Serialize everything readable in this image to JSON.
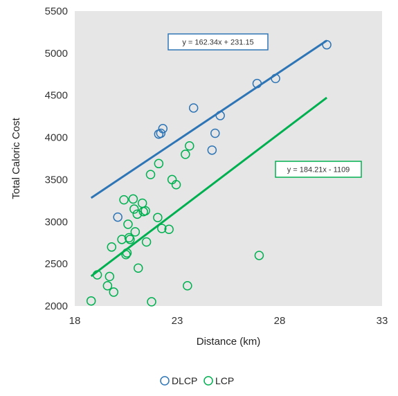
{
  "chart_data": {
    "type": "scatter",
    "xlabel": "Distance (km)",
    "ylabel": "Total Caloric Cost",
    "xlim": [
      18,
      33
    ],
    "ylim": [
      2000,
      5500
    ],
    "x_ticks": [
      18,
      23,
      28,
      33
    ],
    "y_ticks": [
      2000,
      2500,
      3000,
      3500,
      4000,
      4500,
      5000,
      5500
    ],
    "grid": false,
    "plot_background": "#e6e6e6",
    "legend_position": "bottom",
    "series": [
      {
        "name": "DLCP",
        "color": "#2e75b6",
        "points": [
          {
            "x": 20.1,
            "y": 3055
          },
          {
            "x": 22.1,
            "y": 4040
          },
          {
            "x": 22.2,
            "y": 4050
          },
          {
            "x": 22.3,
            "y": 4105
          },
          {
            "x": 23.8,
            "y": 4350
          },
          {
            "x": 24.7,
            "y": 3850
          },
          {
            "x": 24.85,
            "y": 4050
          },
          {
            "x": 25.1,
            "y": 4260
          },
          {
            "x": 26.9,
            "y": 4640
          },
          {
            "x": 27.8,
            "y": 4700
          },
          {
            "x": 30.3,
            "y": 5100
          }
        ],
        "trendline": {
          "slope": 162.34,
          "intercept": 231.15,
          "x_range": [
            18.8,
            30.3
          ],
          "label": "y = 162.34x + 231.15"
        }
      },
      {
        "name": "LCP",
        "color": "#00b050",
        "points": [
          {
            "x": 18.8,
            "y": 2060
          },
          {
            "x": 19.1,
            "y": 2370
          },
          {
            "x": 19.6,
            "y": 2240
          },
          {
            "x": 19.7,
            "y": 2350
          },
          {
            "x": 19.8,
            "y": 2700
          },
          {
            "x": 19.9,
            "y": 2165
          },
          {
            "x": 20.3,
            "y": 2790
          },
          {
            "x": 20.4,
            "y": 3260
          },
          {
            "x": 20.5,
            "y": 2610
          },
          {
            "x": 20.55,
            "y": 2630
          },
          {
            "x": 20.6,
            "y": 2970
          },
          {
            "x": 20.65,
            "y": 2810
          },
          {
            "x": 20.7,
            "y": 2790
          },
          {
            "x": 20.85,
            "y": 3270
          },
          {
            "x": 20.9,
            "y": 3150
          },
          {
            "x": 20.95,
            "y": 2880
          },
          {
            "x": 21.05,
            "y": 3090
          },
          {
            "x": 21.1,
            "y": 2450
          },
          {
            "x": 21.3,
            "y": 3220
          },
          {
            "x": 21.35,
            "y": 3120
          },
          {
            "x": 21.45,
            "y": 3130
          },
          {
            "x": 21.5,
            "y": 2760
          },
          {
            "x": 21.7,
            "y": 3560
          },
          {
            "x": 21.75,
            "y": 2050
          },
          {
            "x": 22.05,
            "y": 3050
          },
          {
            "x": 22.1,
            "y": 3690
          },
          {
            "x": 22.25,
            "y": 2920
          },
          {
            "x": 22.6,
            "y": 2910
          },
          {
            "x": 22.75,
            "y": 3500
          },
          {
            "x": 22.95,
            "y": 3440
          },
          {
            "x": 23.4,
            "y": 3800
          },
          {
            "x": 23.6,
            "y": 3900
          },
          {
            "x": 23.5,
            "y": 2240
          },
          {
            "x": 27.0,
            "y": 2600
          }
        ],
        "trendline": {
          "slope": 184.21,
          "intercept": -1109,
          "x_range": [
            18.8,
            30.3
          ],
          "label": "y = 184.21x - 1109"
        }
      }
    ]
  }
}
